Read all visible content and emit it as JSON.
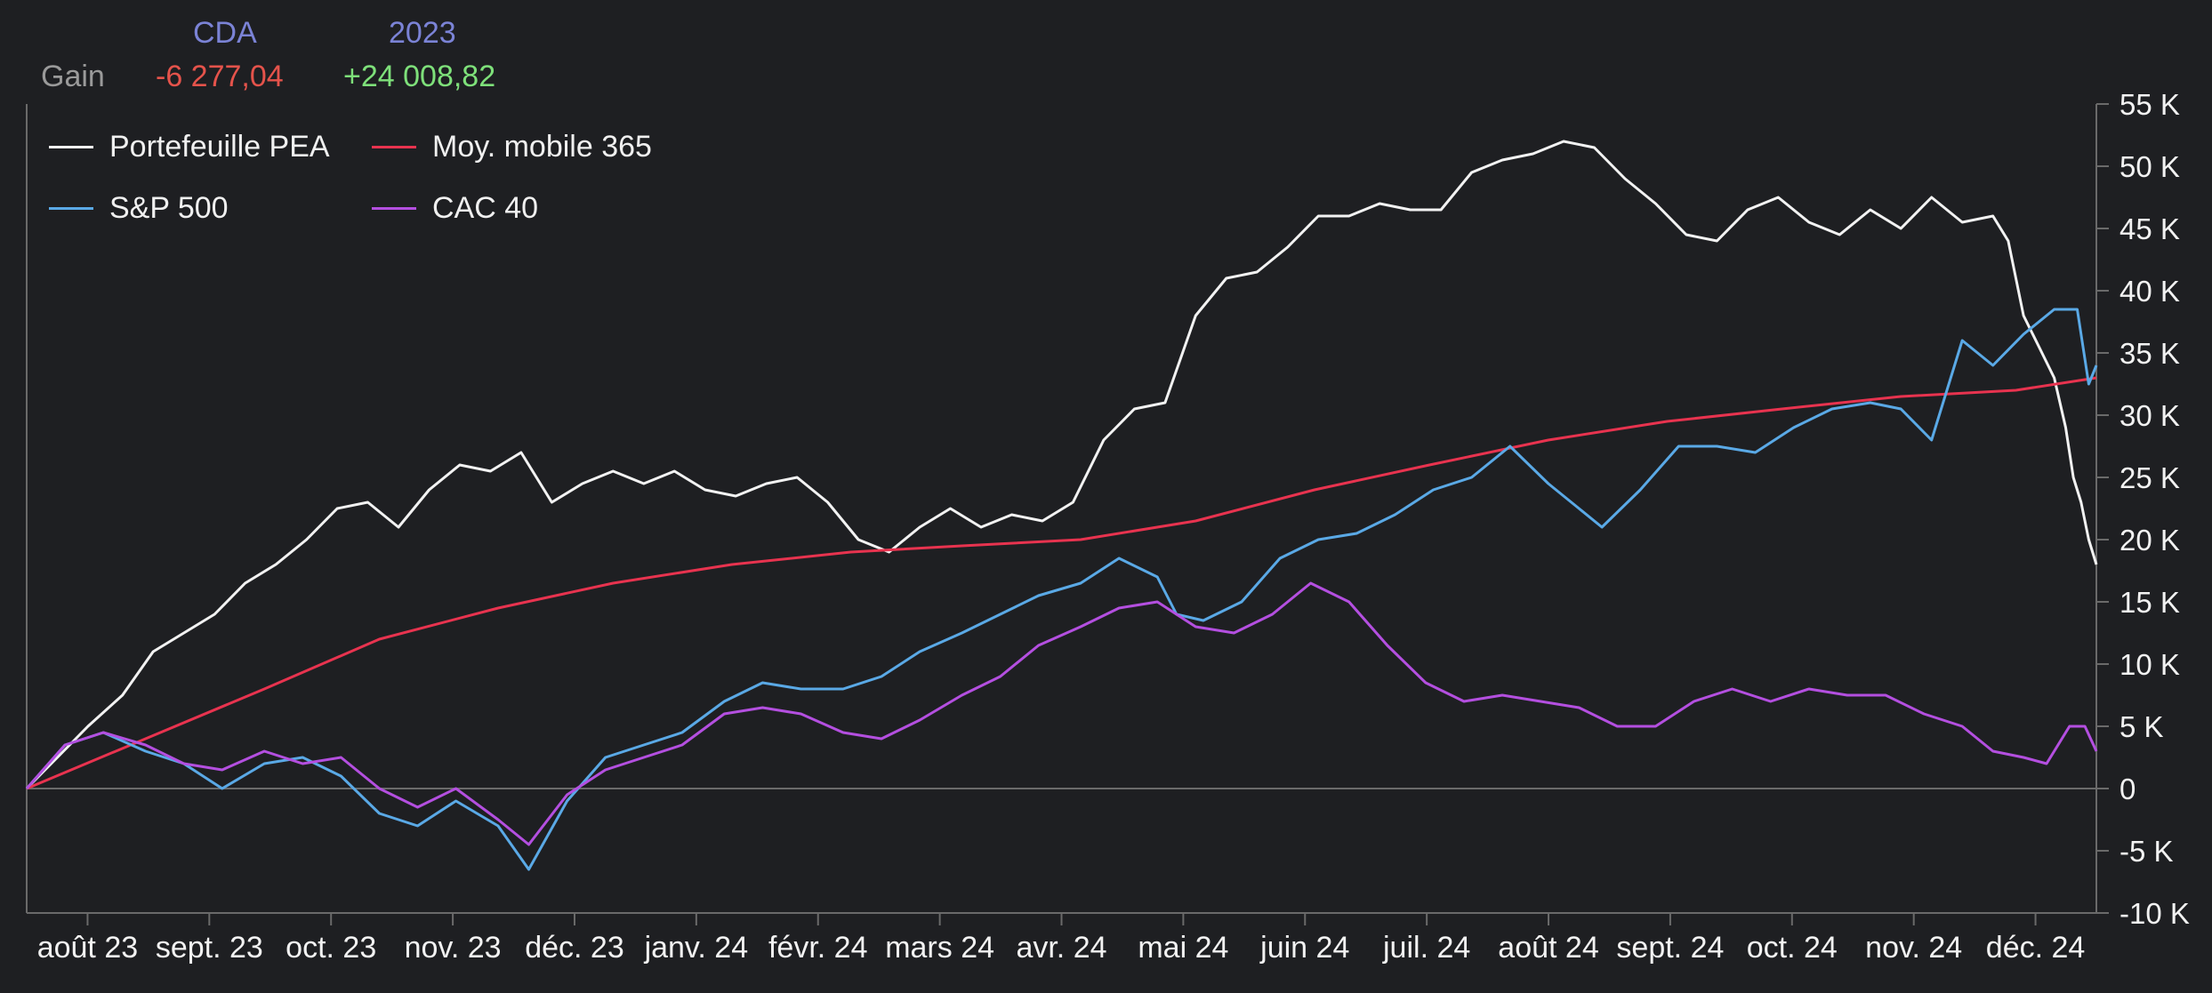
{
  "header": {
    "col1_label": "CDA",
    "col2_label": "2023",
    "row_label": "Gain",
    "col1_value": "-6 277,04",
    "col2_value": "+24 008,82",
    "label_color": "#7b83d6",
    "neg_color": "#e5534b",
    "pos_color": "#7ee07a"
  },
  "legend": [
    {
      "label": "Portefeuille PEA",
      "color": "#f2f2f2"
    },
    {
      "label": "Moy. mobile 365",
      "color": "#e8334f"
    },
    {
      "label": "S&P 500",
      "color": "#5aa9e6"
    },
    {
      "label": "CAC 40",
      "color": "#b44fe0"
    }
  ],
  "chart_data": {
    "type": "line",
    "x_axis": {
      "ticks": [
        "août 23",
        "sept. 23",
        "oct. 23",
        "nov. 23",
        "déc. 23",
        "janv. 24",
        "févr. 24",
        "mars 24",
        "avr. 24",
        "mai 24",
        "juin 24",
        "juil. 24",
        "août 24",
        "sept. 24",
        "oct. 24",
        "nov. 24",
        "déc. 24"
      ]
    },
    "y_axis": {
      "ticks": [
        "55 K",
        "50 K",
        "45 K",
        "40 K",
        "35 K",
        "30 K",
        "25 K",
        "20 K",
        "15 K",
        "10 K",
        "5 K",
        "0",
        "-5 K",
        "-10 K"
      ],
      "ylim": [
        -10000,
        55000
      ],
      "position": "right"
    },
    "x_domain": [
      "2023-07-10",
      "2024-12-31"
    ],
    "series": [
      {
        "name": "Portefeuille PEA",
        "color": "#f2f2f2",
        "points": [
          [
            "2023-07-10",
            0
          ],
          [
            "2023-07-18",
            2500
          ],
          [
            "2023-07-26",
            5000
          ],
          [
            "2023-08-04",
            7500
          ],
          [
            "2023-08-12",
            11000
          ],
          [
            "2023-08-20",
            12500
          ],
          [
            "2023-08-28",
            14000
          ],
          [
            "2023-09-05",
            16500
          ],
          [
            "2023-09-13",
            18000
          ],
          [
            "2023-09-21",
            20000
          ],
          [
            "2023-09-29",
            22500
          ],
          [
            "2023-10-07",
            23000
          ],
          [
            "2023-10-15",
            21000
          ],
          [
            "2023-10-23",
            24000
          ],
          [
            "2023-10-31",
            26000
          ],
          [
            "2023-11-08",
            25500
          ],
          [
            "2023-11-16",
            27000
          ],
          [
            "2023-11-24",
            23000
          ],
          [
            "2023-12-02",
            24500
          ],
          [
            "2023-12-10",
            25500
          ],
          [
            "2023-12-18",
            24500
          ],
          [
            "2023-12-26",
            25500
          ],
          [
            "2024-01-03",
            24000
          ],
          [
            "2024-01-11",
            23500
          ],
          [
            "2024-01-19",
            24500
          ],
          [
            "2024-01-27",
            25000
          ],
          [
            "2024-02-04",
            23000
          ],
          [
            "2024-02-12",
            20000
          ],
          [
            "2024-02-20",
            19000
          ],
          [
            "2024-02-28",
            21000
          ],
          [
            "2024-03-07",
            22500
          ],
          [
            "2024-03-15",
            21000
          ],
          [
            "2024-03-23",
            22000
          ],
          [
            "2024-03-31",
            21500
          ],
          [
            "2024-04-08",
            23000
          ],
          [
            "2024-04-16",
            28000
          ],
          [
            "2024-04-24",
            30500
          ],
          [
            "2024-05-02",
            31000
          ],
          [
            "2024-05-10",
            38000
          ],
          [
            "2024-05-18",
            41000
          ],
          [
            "2024-05-26",
            41500
          ],
          [
            "2024-06-03",
            43500
          ],
          [
            "2024-06-11",
            46000
          ],
          [
            "2024-06-19",
            46000
          ],
          [
            "2024-06-27",
            47000
          ],
          [
            "2024-07-05",
            46500
          ],
          [
            "2024-07-13",
            46500
          ],
          [
            "2024-07-21",
            49500
          ],
          [
            "2024-07-29",
            50500
          ],
          [
            "2024-08-06",
            51000
          ],
          [
            "2024-08-14",
            52000
          ],
          [
            "2024-08-22",
            51500
          ],
          [
            "2024-08-30",
            49000
          ],
          [
            "2024-09-07",
            47000
          ],
          [
            "2024-09-15",
            44500
          ],
          [
            "2024-09-23",
            44000
          ],
          [
            "2024-10-01",
            46500
          ],
          [
            "2024-10-09",
            47500
          ],
          [
            "2024-10-17",
            45500
          ],
          [
            "2024-10-25",
            44500
          ],
          [
            "2024-11-02",
            46500
          ],
          [
            "2024-11-10",
            45000
          ],
          [
            "2024-11-18",
            47500
          ],
          [
            "2024-11-26",
            45500
          ],
          [
            "2024-12-04",
            46000
          ],
          [
            "2024-12-08",
            44000
          ],
          [
            "2024-12-12",
            38000
          ],
          [
            "2024-12-16",
            35500
          ],
          [
            "2024-12-20",
            33000
          ],
          [
            "2024-12-23",
            29000
          ],
          [
            "2024-12-25",
            25000
          ],
          [
            "2024-12-27",
            23000
          ],
          [
            "2024-12-29",
            20000
          ],
          [
            "2024-12-31",
            18000
          ]
        ]
      },
      {
        "name": "Moy. mobile 365",
        "color": "#e8334f",
        "points": [
          [
            "2023-07-10",
            0
          ],
          [
            "2023-08-10",
            4000
          ],
          [
            "2023-09-10",
            8000
          ],
          [
            "2023-10-10",
            12000
          ],
          [
            "2023-11-10",
            14500
          ],
          [
            "2023-12-10",
            16500
          ],
          [
            "2024-01-10",
            18000
          ],
          [
            "2024-02-10",
            19000
          ],
          [
            "2024-03-10",
            19500
          ],
          [
            "2024-04-10",
            20000
          ],
          [
            "2024-05-10",
            21500
          ],
          [
            "2024-06-10",
            24000
          ],
          [
            "2024-07-10",
            26000
          ],
          [
            "2024-08-10",
            28000
          ],
          [
            "2024-09-10",
            29500
          ],
          [
            "2024-10-10",
            30500
          ],
          [
            "2024-11-10",
            31500
          ],
          [
            "2024-12-10",
            32000
          ],
          [
            "2024-12-31",
            33000
          ]
        ]
      },
      {
        "name": "S&P 500",
        "color": "#5aa9e6",
        "points": [
          [
            "2023-07-10",
            0
          ],
          [
            "2023-07-20",
            3500
          ],
          [
            "2023-07-30",
            4500
          ],
          [
            "2023-08-10",
            3000
          ],
          [
            "2023-08-20",
            2000
          ],
          [
            "2023-08-30",
            0
          ],
          [
            "2023-09-10",
            2000
          ],
          [
            "2023-09-20",
            2500
          ],
          [
            "2023-09-30",
            1000
          ],
          [
            "2023-10-10",
            -2000
          ],
          [
            "2023-10-20",
            -3000
          ],
          [
            "2023-10-30",
            -1000
          ],
          [
            "2023-11-10",
            -3000
          ],
          [
            "2023-11-18",
            -6500
          ],
          [
            "2023-11-28",
            -1000
          ],
          [
            "2023-12-08",
            2500
          ],
          [
            "2023-12-18",
            3500
          ],
          [
            "2023-12-28",
            4500
          ],
          [
            "2024-01-08",
            7000
          ],
          [
            "2024-01-18",
            8500
          ],
          [
            "2024-01-28",
            8000
          ],
          [
            "2024-02-08",
            8000
          ],
          [
            "2024-02-18",
            9000
          ],
          [
            "2024-02-28",
            11000
          ],
          [
            "2024-03-10",
            12500
          ],
          [
            "2024-03-20",
            14000
          ],
          [
            "2024-03-30",
            15500
          ],
          [
            "2024-04-10",
            16500
          ],
          [
            "2024-04-20",
            18500
          ],
          [
            "2024-04-30",
            17000
          ],
          [
            "2024-05-05",
            14000
          ],
          [
            "2024-05-12",
            13500
          ],
          [
            "2024-05-22",
            15000
          ],
          [
            "2024-06-01",
            18500
          ],
          [
            "2024-06-11",
            20000
          ],
          [
            "2024-06-21",
            20500
          ],
          [
            "2024-07-01",
            22000
          ],
          [
            "2024-07-11",
            24000
          ],
          [
            "2024-07-21",
            25000
          ],
          [
            "2024-07-31",
            27500
          ],
          [
            "2024-08-10",
            24500
          ],
          [
            "2024-08-18",
            22500
          ],
          [
            "2024-08-24",
            21000
          ],
          [
            "2024-09-03",
            24000
          ],
          [
            "2024-09-13",
            27500
          ],
          [
            "2024-09-23",
            27500
          ],
          [
            "2024-10-03",
            27000
          ],
          [
            "2024-10-13",
            29000
          ],
          [
            "2024-10-23",
            30500
          ],
          [
            "2024-11-02",
            31000
          ],
          [
            "2024-11-10",
            30500
          ],
          [
            "2024-11-18",
            28000
          ],
          [
            "2024-11-26",
            36000
          ],
          [
            "2024-12-04",
            34000
          ],
          [
            "2024-12-12",
            36500
          ],
          [
            "2024-12-20",
            38500
          ],
          [
            "2024-12-26",
            38500
          ],
          [
            "2024-12-29",
            32500
          ],
          [
            "2024-12-31",
            34000
          ]
        ]
      },
      {
        "name": "CAC 40",
        "color": "#b44fe0",
        "points": [
          [
            "2023-07-10",
            0
          ],
          [
            "2023-07-20",
            3500
          ],
          [
            "2023-07-30",
            4500
          ],
          [
            "2023-08-10",
            3500
          ],
          [
            "2023-08-20",
            2000
          ],
          [
            "2023-08-30",
            1500
          ],
          [
            "2023-09-10",
            3000
          ],
          [
            "2023-09-20",
            2000
          ],
          [
            "2023-09-30",
            2500
          ],
          [
            "2023-10-10",
            0
          ],
          [
            "2023-10-20",
            -1500
          ],
          [
            "2023-10-30",
            0
          ],
          [
            "2023-11-10",
            -2500
          ],
          [
            "2023-11-18",
            -4500
          ],
          [
            "2023-11-28",
            -500
          ],
          [
            "2023-12-08",
            1500
          ],
          [
            "2023-12-18",
            2500
          ],
          [
            "2023-12-28",
            3500
          ],
          [
            "2024-01-08",
            6000
          ],
          [
            "2024-01-18",
            6500
          ],
          [
            "2024-01-28",
            6000
          ],
          [
            "2024-02-08",
            4500
          ],
          [
            "2024-02-18",
            4000
          ],
          [
            "2024-02-28",
            5500
          ],
          [
            "2024-03-10",
            7500
          ],
          [
            "2024-03-20",
            9000
          ],
          [
            "2024-03-30",
            11500
          ],
          [
            "2024-04-10",
            13000
          ],
          [
            "2024-04-20",
            14500
          ],
          [
            "2024-04-30",
            15000
          ],
          [
            "2024-05-10",
            13000
          ],
          [
            "2024-05-20",
            12500
          ],
          [
            "2024-05-30",
            14000
          ],
          [
            "2024-06-09",
            16500
          ],
          [
            "2024-06-19",
            15000
          ],
          [
            "2024-06-29",
            11500
          ],
          [
            "2024-07-09",
            8500
          ],
          [
            "2024-07-19",
            7000
          ],
          [
            "2024-07-29",
            7500
          ],
          [
            "2024-08-08",
            7000
          ],
          [
            "2024-08-18",
            6500
          ],
          [
            "2024-08-28",
            5000
          ],
          [
            "2024-09-07",
            5000
          ],
          [
            "2024-09-17",
            7000
          ],
          [
            "2024-09-27",
            8000
          ],
          [
            "2024-10-07",
            7000
          ],
          [
            "2024-10-17",
            8000
          ],
          [
            "2024-10-27",
            7500
          ],
          [
            "2024-11-06",
            7500
          ],
          [
            "2024-11-16",
            6000
          ],
          [
            "2024-11-26",
            5000
          ],
          [
            "2024-12-04",
            3000
          ],
          [
            "2024-12-12",
            2500
          ],
          [
            "2024-12-18",
            2000
          ],
          [
            "2024-12-24",
            5000
          ],
          [
            "2024-12-28",
            5000
          ],
          [
            "2024-12-31",
            3000
          ]
        ]
      }
    ]
  }
}
